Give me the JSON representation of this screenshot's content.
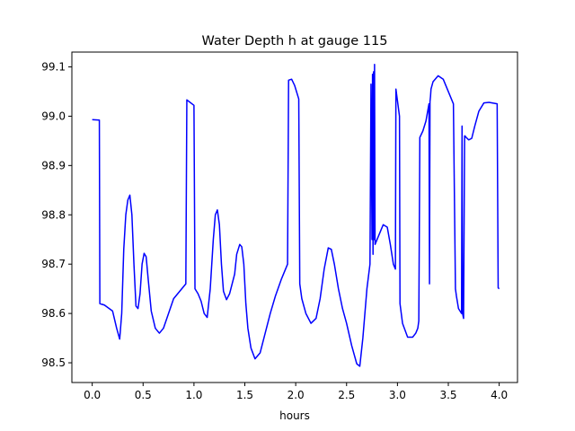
{
  "chart_data": {
    "type": "line",
    "title": "Water Depth h at gauge 115",
    "xlabel": "hours",
    "ylabel": "",
    "xlim": [
      -0.2,
      4.18
    ],
    "ylim": [
      98.46,
      99.13
    ],
    "xticks": [
      0.0,
      0.5,
      1.0,
      1.5,
      2.0,
      2.5,
      3.0,
      3.5,
      4.0
    ],
    "xtick_labels": [
      "0.0",
      "0.5",
      "1.0",
      "1.5",
      "2.0",
      "2.5",
      "3.0",
      "3.5",
      "4.0"
    ],
    "yticks": [
      98.5,
      98.6,
      98.7,
      98.8,
      98.9,
      99.0,
      99.1
    ],
    "ytick_labels": [
      "98.5",
      "98.6",
      "98.7",
      "98.8",
      "98.9",
      "99.0",
      "99.1"
    ],
    "grid": false,
    "series": [
      {
        "color": "#0000ff",
        "x": [
          0.0,
          0.07,
          0.075,
          0.12,
          0.2,
          0.24,
          0.27,
          0.29,
          0.31,
          0.33,
          0.35,
          0.37,
          0.39,
          0.41,
          0.43,
          0.45,
          0.47,
          0.49,
          0.51,
          0.53,
          0.55,
          0.58,
          0.62,
          0.66,
          0.7,
          0.75,
          0.8,
          0.84,
          0.9,
          0.92,
          0.93,
          1.0,
          1.01,
          1.04,
          1.07,
          1.1,
          1.13,
          1.16,
          1.19,
          1.21,
          1.23,
          1.25,
          1.27,
          1.29,
          1.32,
          1.35,
          1.4,
          1.42,
          1.45,
          1.47,
          1.49,
          1.51,
          1.53,
          1.56,
          1.6,
          1.65,
          1.7,
          1.75,
          1.8,
          1.86,
          1.92,
          1.93,
          1.96,
          1.99,
          2.03,
          2.04,
          2.06,
          2.1,
          2.15,
          2.2,
          2.24,
          2.28,
          2.32,
          2.35,
          2.38,
          2.42,
          2.46,
          2.5,
          2.55,
          2.6,
          2.63,
          2.66,
          2.7,
          2.73,
          2.74,
          2.75,
          2.755,
          2.76,
          2.765,
          2.77,
          2.775,
          2.78,
          2.79,
          2.82,
          2.86,
          2.9,
          2.93,
          2.96,
          2.98,
          2.985,
          3.02,
          3.025,
          3.05,
          3.1,
          3.15,
          3.18,
          3.2,
          3.21,
          3.22,
          3.25,
          3.28,
          3.31,
          3.315,
          3.32,
          3.325,
          3.33,
          3.35,
          3.4,
          3.45,
          3.5,
          3.55,
          3.57,
          3.58,
          3.6,
          3.63,
          3.635,
          3.64,
          3.65,
          3.66,
          3.665,
          3.67,
          3.7,
          3.73,
          3.76,
          3.8,
          3.85,
          3.9,
          3.98,
          3.99,
          4.0
        ],
        "y": [
          98.993,
          98.992,
          98.62,
          98.617,
          98.605,
          98.57,
          98.548,
          98.6,
          98.73,
          98.8,
          98.83,
          98.84,
          98.8,
          98.7,
          98.615,
          98.61,
          98.64,
          98.7,
          98.722,
          98.715,
          98.67,
          98.605,
          98.57,
          98.56,
          98.57,
          98.6,
          98.63,
          98.64,
          98.655,
          98.66,
          99.033,
          99.022,
          98.65,
          98.64,
          98.625,
          98.6,
          98.592,
          98.65,
          98.75,
          98.8,
          98.81,
          98.78,
          98.7,
          98.645,
          98.628,
          98.64,
          98.68,
          98.72,
          98.74,
          98.735,
          98.7,
          98.62,
          98.57,
          98.53,
          98.508,
          98.52,
          98.56,
          98.6,
          98.635,
          98.67,
          98.7,
          99.073,
          99.075,
          99.062,
          99.035,
          98.66,
          98.63,
          98.6,
          98.58,
          98.59,
          98.63,
          98.69,
          98.733,
          98.73,
          98.7,
          98.65,
          98.61,
          98.58,
          98.535,
          98.498,
          98.493,
          98.55,
          98.65,
          98.7,
          99.065,
          98.75,
          99.085,
          98.72,
          99.09,
          98.75,
          99.105,
          98.74,
          98.745,
          98.76,
          98.78,
          98.775,
          98.74,
          98.7,
          98.69,
          99.055,
          99.0,
          98.62,
          98.58,
          98.552,
          98.552,
          98.56,
          98.57,
          98.585,
          98.957,
          98.97,
          98.99,
          99.025,
          98.66,
          99.03,
          99.04,
          99.055,
          99.07,
          99.082,
          99.075,
          99.05,
          99.025,
          98.65,
          98.635,
          98.61,
          98.6,
          98.98,
          98.6,
          98.59,
          98.96,
          98.96,
          98.958,
          98.952,
          98.955,
          98.98,
          99.01,
          99.027,
          99.028,
          99.025,
          98.652,
          98.65
        ]
      }
    ]
  }
}
